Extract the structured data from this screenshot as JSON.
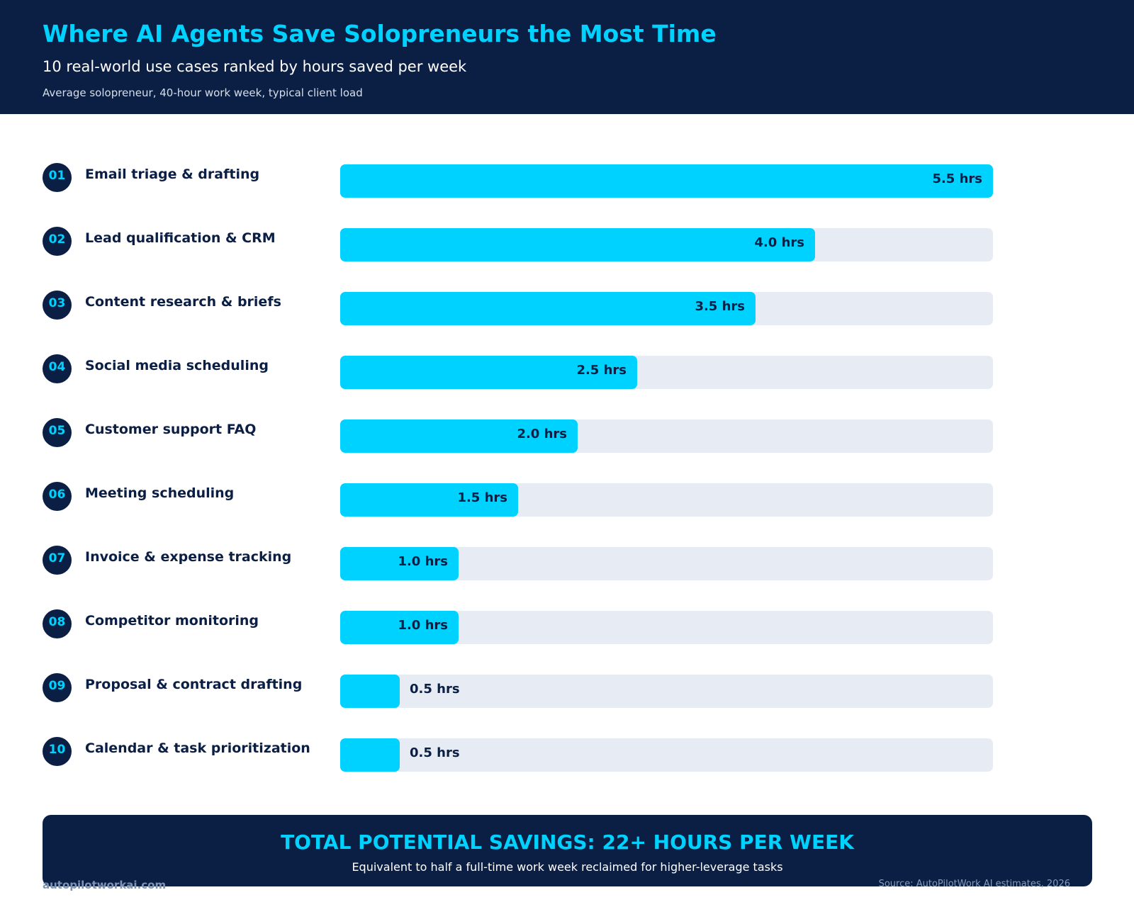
{
  "header": {
    "title": "Where AI Agents Save Solopreneurs the Most Time",
    "subtitle": "10 real-world use cases ranked by hours saved per week",
    "note": "Average solopreneur, 40-hour work week, typical client load"
  },
  "chart_data": {
    "type": "bar",
    "orientation": "horizontal",
    "unit": "hrs",
    "xlim": [
      0,
      5.5
    ],
    "grid": false,
    "categories": [
      "Email triage & drafting",
      "Lead qualification & CRM",
      "Content research & briefs",
      "Social media scheduling",
      "Customer support FAQ",
      "Meeting scheduling",
      "Invoice & expense tracking",
      "Competitor monitoring",
      "Proposal & contract drafting",
      "Calendar & task prioritization"
    ],
    "ranks": [
      "01",
      "02",
      "03",
      "04",
      "05",
      "06",
      "07",
      "08",
      "09",
      "10"
    ],
    "values": [
      5.5,
      4.0,
      3.5,
      2.5,
      2.0,
      1.5,
      1.0,
      1.0,
      0.5,
      0.5
    ],
    "value_labels": [
      "5.5 hrs",
      "4.0 hrs",
      "3.5 hrs",
      "2.5 hrs",
      "2.0 hrs",
      "1.5 hrs",
      "1.0 hrs",
      "1.0 hrs",
      "0.5 hrs",
      "0.5 hrs"
    ]
  },
  "summary": {
    "title": "TOTAL POTENTIAL SAVINGS: 22+ HOURS PER WEEK",
    "subtitle": "Equivalent to half a full-time work week reclaimed for higher-leverage tasks"
  },
  "footer": {
    "site": "autopilotworkai.com",
    "source": "Source: AutoPilotWork AI estimates, 2026"
  },
  "colors": {
    "navy": "#0b1f45",
    "accent": "#00d2ff",
    "track": "#e7ecf4"
  }
}
